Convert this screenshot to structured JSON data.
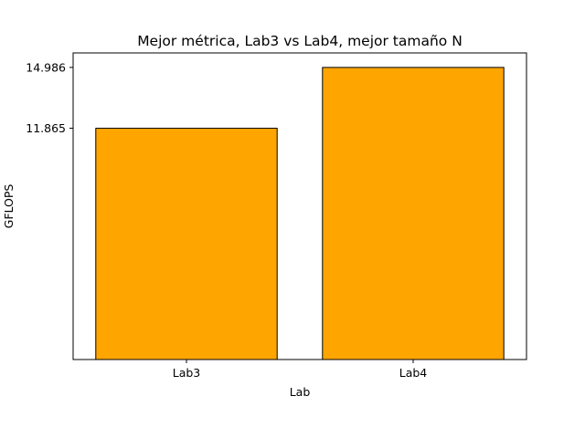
{
  "chart_data": {
    "type": "bar",
    "title": "Mejor métrica, Lab3 vs Lab4, mejor tamaño N",
    "xlabel": "Lab",
    "ylabel": "GFLOPS",
    "categories": [
      "Lab3",
      "Lab4"
    ],
    "values": [
      11.865,
      14.986
    ],
    "yticks": [
      "11.865",
      "14.986"
    ],
    "ylim": [
      0,
      15.73
    ],
    "bar_color": "#FFA500",
    "edge_color": "#000000",
    "grid": false,
    "legend": "none"
  }
}
